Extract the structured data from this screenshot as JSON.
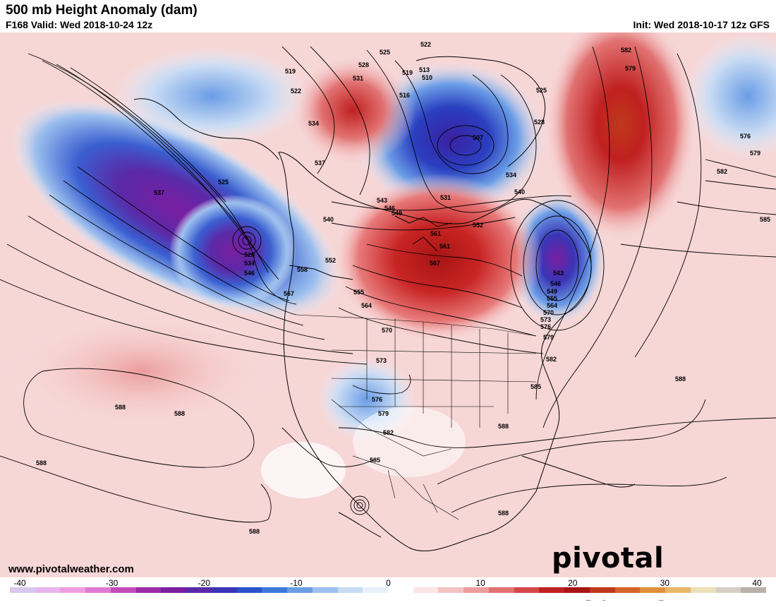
{
  "header": {
    "title": "500 mb Height Anomaly (dam)",
    "valid": "F168 Valid: Wed 2018-10-24 12z",
    "init": "Init: Wed 2018-10-17 12z GFS"
  },
  "footer": {
    "url": "www.pivotalweather.com",
    "brand": "pivotal weather"
  },
  "colorbar": {
    "ticks": [
      "-40",
      "-30",
      "-20",
      "-10",
      "0",
      "10",
      "20",
      "30",
      "40"
    ],
    "colors": [
      "#d8c8ee",
      "#e6b6ec",
      "#ee9ee0",
      "#e07ad0",
      "#c34cba",
      "#9c2aa6",
      "#7a1ea0",
      "#5a2aa8",
      "#3a35b5",
      "#2a52cc",
      "#3f78dc",
      "#6b9de6",
      "#9dc0ee",
      "#c8dbf4",
      "#e8f0fa",
      "#ffffff",
      "#fbe4e4",
      "#f4c2c2",
      "#ec9c9c",
      "#e27272",
      "#d44848",
      "#c02020",
      "#a81414",
      "#c0391c",
      "#d6642a",
      "#e0913e",
      "#e6b868",
      "#ece0b8",
      "#d6cfc6",
      "#b9b1a9"
    ]
  },
  "contour_labels": [
    "519",
    "522",
    "525",
    "528",
    "531",
    "534",
    "537",
    "540",
    "543",
    "546",
    "549",
    "552",
    "555",
    "558",
    "561",
    "564",
    "567",
    "570",
    "573",
    "576",
    "579",
    "582",
    "585",
    "588",
    "507",
    "510",
    "513",
    "516"
  ],
  "icons": [
    "pivotal-weather-logo",
    "colorbar-legend"
  ]
}
